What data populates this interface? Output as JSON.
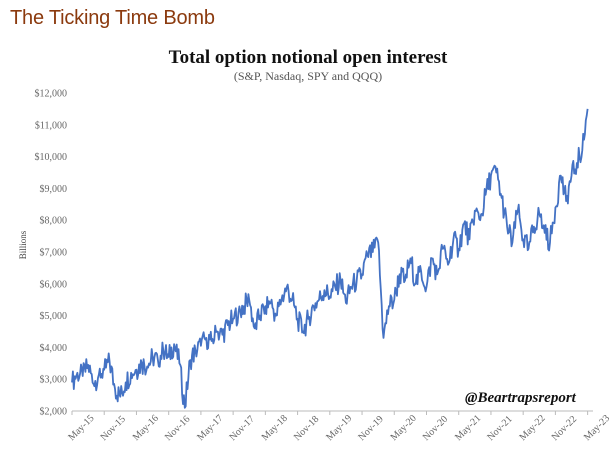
{
  "banner": "The Ticking Time Bomb",
  "watermark": "@Beartrapsreport",
  "colors": {
    "line": "#4472C4",
    "banner": "#8B3A0E"
  },
  "chart_data": {
    "type": "line",
    "title": "Total option notional open interest",
    "subtitle": "(S&P, Nasdaq, SPY and QQQ)",
    "xlabel": "",
    "ylabel": "Billions",
    "ylim": [
      2000,
      12000
    ],
    "yticks": [
      "$2,000",
      "$3,000",
      "$4,000",
      "$5,000",
      "$6,000",
      "$7,000",
      "$8,000",
      "$9,000",
      "$10,000",
      "$11,000",
      "$12,000"
    ],
    "ytick_values": [
      2000,
      3000,
      4000,
      5000,
      6000,
      7000,
      8000,
      9000,
      10000,
      11000,
      12000
    ],
    "xticks": [
      "May-15",
      "Nov-15",
      "May-16",
      "Nov-16",
      "May-17",
      "Nov-17",
      "May-18",
      "Nov-18",
      "May-19",
      "Nov-19",
      "May-20",
      "Nov-20",
      "May-21",
      "Nov-21",
      "May-22",
      "Nov-22",
      "May-23"
    ],
    "grid": false,
    "series": [
      {
        "points": [
          [
            "2015-05",
            2900
          ],
          [
            "2015-06",
            3200
          ],
          [
            "2015-07",
            3100
          ],
          [
            "2015-08",
            3450
          ],
          [
            "2015-09",
            2850
          ],
          [
            "2015-10",
            3150
          ],
          [
            "2015-11",
            3300
          ],
          [
            "2015-12",
            3550
          ],
          [
            "2016-01",
            2700
          ],
          [
            "2016-02",
            2450
          ],
          [
            "2016-03",
            2900
          ],
          [
            "2016-04",
            3200
          ],
          [
            "2016-05",
            3300
          ],
          [
            "2016-06",
            3500
          ],
          [
            "2016-07",
            3400
          ],
          [
            "2016-08",
            3700
          ],
          [
            "2016-09",
            3600
          ],
          [
            "2016-10",
            3900
          ],
          [
            "2016-11",
            3700
          ],
          [
            "2016-12",
            4100
          ],
          [
            "2017-01",
            3500
          ],
          [
            "2017-02",
            2100
          ],
          [
            "2017-03",
            3600
          ],
          [
            "2017-04",
            3900
          ],
          [
            "2017-05",
            4050
          ],
          [
            "2017-06",
            4300
          ],
          [
            "2017-07",
            4200
          ],
          [
            "2017-08",
            4500
          ],
          [
            "2017-09",
            4400
          ],
          [
            "2017-10",
            4700
          ],
          [
            "2017-11",
            4900
          ],
          [
            "2017-12",
            5100
          ],
          [
            "2018-01",
            5300
          ],
          [
            "2018-02",
            5500
          ],
          [
            "2018-03",
            4600
          ],
          [
            "2018-04",
            5000
          ],
          [
            "2018-05",
            5300
          ],
          [
            "2018-06",
            5400
          ],
          [
            "2018-07",
            5000
          ],
          [
            "2018-08",
            5500
          ],
          [
            "2018-09",
            5900
          ],
          [
            "2018-10",
            5500
          ],
          [
            "2018-11",
            4900
          ],
          [
            "2018-12",
            4500
          ],
          [
            "2019-01",
            4900
          ],
          [
            "2019-02",
            5300
          ],
          [
            "2019-03",
            5500
          ],
          [
            "2019-04",
            5800
          ],
          [
            "2019-05",
            5600
          ],
          [
            "2019-06",
            5900
          ],
          [
            "2019-07",
            6100
          ],
          [
            "2019-08",
            5400
          ],
          [
            "2019-09",
            5900
          ],
          [
            "2019-10",
            6100
          ],
          [
            "2019-11",
            6300
          ],
          [
            "2019-12",
            6900
          ],
          [
            "2020-01",
            7000
          ],
          [
            "2020-02",
            7300
          ],
          [
            "2020-03",
            4300
          ],
          [
            "2020-04",
            5300
          ],
          [
            "2020-05",
            5500
          ],
          [
            "2020-06",
            6300
          ],
          [
            "2020-07",
            6100
          ],
          [
            "2020-08",
            6800
          ],
          [
            "2020-09",
            6000
          ],
          [
            "2020-10",
            6400
          ],
          [
            "2020-11",
            5900
          ],
          [
            "2020-12",
            6800
          ],
          [
            "2021-01",
            6300
          ],
          [
            "2021-02",
            7100
          ],
          [
            "2021-03",
            6600
          ],
          [
            "2021-04",
            7400
          ],
          [
            "2021-05",
            7100
          ],
          [
            "2021-06",
            7900
          ],
          [
            "2021-07",
            7400
          ],
          [
            "2021-08",
            8300
          ],
          [
            "2021-09",
            8000
          ],
          [
            "2021-10",
            8800
          ],
          [
            "2021-11",
            9400
          ],
          [
            "2021-12",
            9500
          ],
          [
            "2022-01",
            8700
          ],
          [
            "2022-02",
            7800
          ],
          [
            "2022-03",
            7300
          ],
          [
            "2022-04",
            8300
          ],
          [
            "2022-05",
            7400
          ],
          [
            "2022-06",
            7100
          ],
          [
            "2022-07",
            7800
          ],
          [
            "2022-08",
            8200
          ],
          [
            "2022-09",
            7600
          ],
          [
            "2022-10",
            7300
          ],
          [
            "2022-11",
            8400
          ],
          [
            "2022-12",
            9400
          ],
          [
            "2023-01",
            8600
          ],
          [
            "2023-02",
            9400
          ],
          [
            "2023-03",
            9800
          ],
          [
            "2023-04",
            10200
          ],
          [
            "2023-05",
            11500
          ]
        ]
      }
    ]
  }
}
